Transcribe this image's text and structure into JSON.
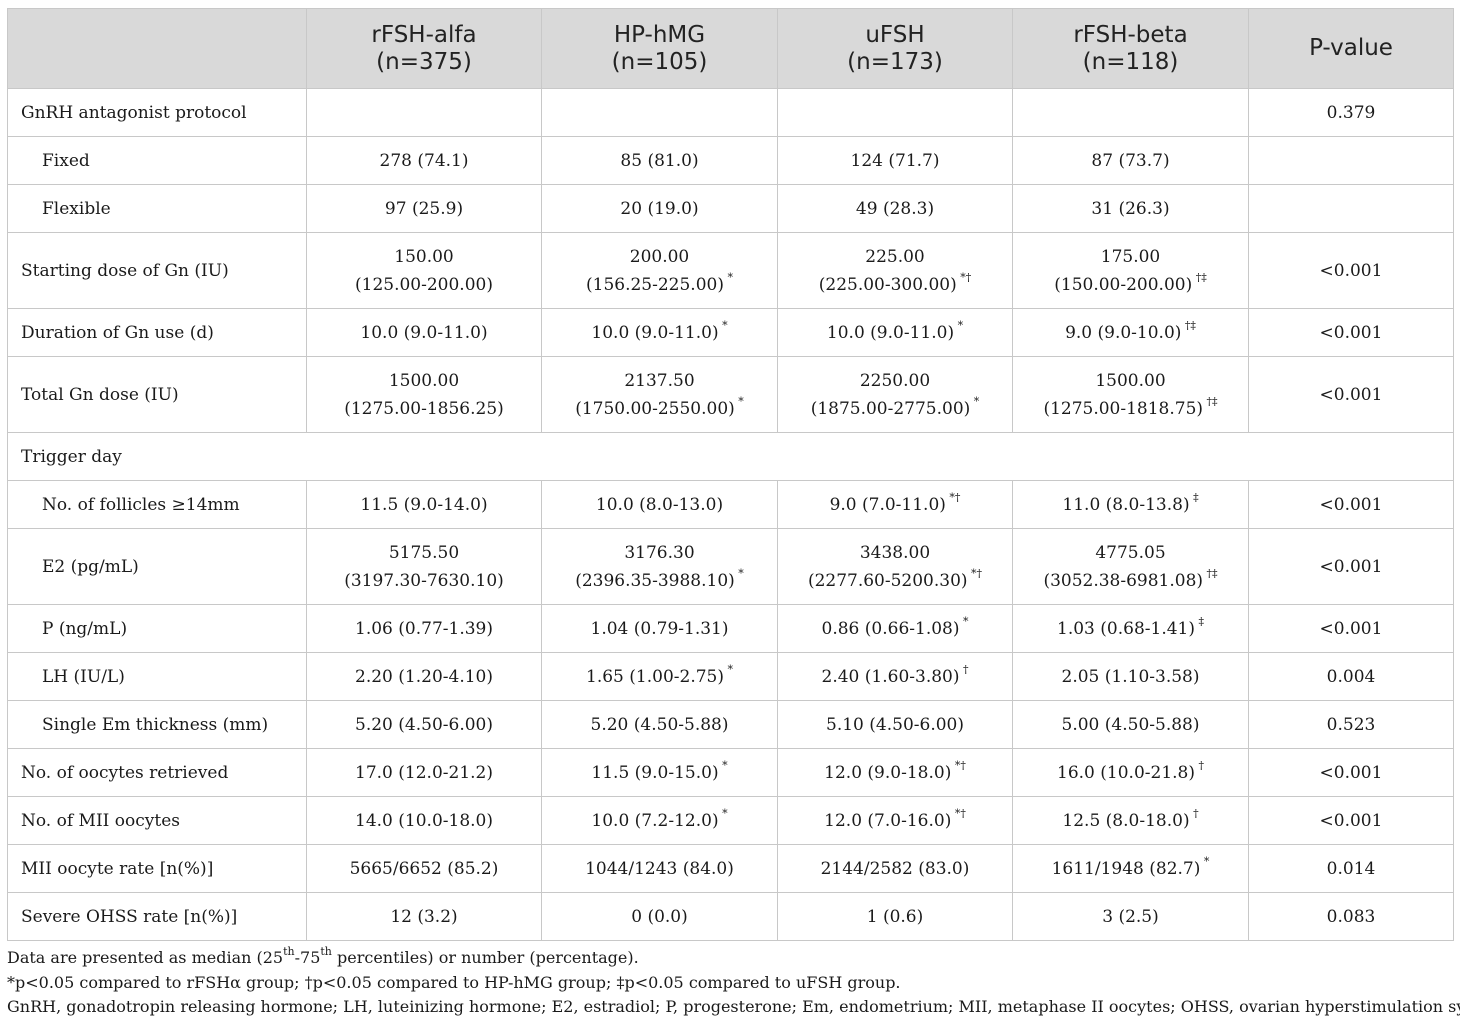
{
  "table": {
    "columns": [
      {
        "name": "",
        "n": ""
      },
      {
        "name": "rFSH-alfa",
        "n": "(n=375)"
      },
      {
        "name": "HP-hMG",
        "n": "(n=105)"
      },
      {
        "name": "uFSH",
        "n": "(n=173)"
      },
      {
        "name": "rFSH-beta",
        "n": "(n=118)"
      },
      {
        "name": "P-value",
        "n": ""
      }
    ],
    "rows": [
      {
        "label": "GnRH antagonist protocol",
        "indent": false,
        "tall": false,
        "span": false,
        "cells": [
          [],
          [],
          [],
          []
        ],
        "p": "0.379"
      },
      {
        "label": "Fixed",
        "indent": true,
        "tall": false,
        "span": false,
        "cells": [
          [
            {
              "t": "278 (74.1)",
              "s": ""
            }
          ],
          [
            {
              "t": "85 (81.0)",
              "s": ""
            }
          ],
          [
            {
              "t": "124 (71.7)",
              "s": ""
            }
          ],
          [
            {
              "t": "87 (73.7)",
              "s": ""
            }
          ]
        ],
        "p": ""
      },
      {
        "label": "Flexible",
        "indent": true,
        "tall": false,
        "span": false,
        "cells": [
          [
            {
              "t": "97 (25.9)",
              "s": ""
            }
          ],
          [
            {
              "t": "20 (19.0)",
              "s": ""
            }
          ],
          [
            {
              "t": "49 (28.3)",
              "s": ""
            }
          ],
          [
            {
              "t": "31 (26.3)",
              "s": ""
            }
          ]
        ],
        "p": ""
      },
      {
        "label": "Starting dose of Gn (IU)",
        "indent": false,
        "tall": true,
        "span": false,
        "cells": [
          [
            {
              "t": "150.00",
              "s": ""
            },
            {
              "t": "(125.00-200.00)",
              "s": ""
            }
          ],
          [
            {
              "t": "200.00",
              "s": ""
            },
            {
              "t": "(156.25-225.00)",
              "s": " *"
            }
          ],
          [
            {
              "t": "225.00",
              "s": ""
            },
            {
              "t": "(225.00-300.00)",
              "s": " *†"
            }
          ],
          [
            {
              "t": "175.00",
              "s": ""
            },
            {
              "t": "(150.00-200.00)",
              "s": " †‡"
            }
          ]
        ],
        "p": "<0.001"
      },
      {
        "label": "Duration of Gn use (d)",
        "indent": false,
        "tall": false,
        "span": false,
        "cells": [
          [
            {
              "t": "10.0 (9.0-11.0)",
              "s": ""
            }
          ],
          [
            {
              "t": "10.0 (9.0-11.0)",
              "s": " *"
            }
          ],
          [
            {
              "t": "10.0 (9.0-11.0)",
              "s": " *"
            }
          ],
          [
            {
              "t": "9.0 (9.0-10.0)",
              "s": " †‡"
            }
          ]
        ],
        "p": "<0.001"
      },
      {
        "label": "Total Gn dose (IU)",
        "indent": false,
        "tall": true,
        "span": false,
        "cells": [
          [
            {
              "t": "1500.00",
              "s": ""
            },
            {
              "t": "(1275.00-1856.25)",
              "s": ""
            }
          ],
          [
            {
              "t": "2137.50",
              "s": ""
            },
            {
              "t": "(1750.00-2550.00)",
              "s": " *"
            }
          ],
          [
            {
              "t": "2250.00",
              "s": ""
            },
            {
              "t": "(1875.00-2775.00)",
              "s": " *"
            }
          ],
          [
            {
              "t": "1500.00",
              "s": ""
            },
            {
              "t": "(1275.00-1818.75)",
              "s": " †‡"
            }
          ]
        ],
        "p": "<0.001"
      },
      {
        "label": "Trigger day",
        "indent": false,
        "tall": false,
        "span": true,
        "cells": [],
        "p": ""
      },
      {
        "label": "No. of follicles ≥14mm",
        "indent": true,
        "tall": false,
        "span": false,
        "cells": [
          [
            {
              "t": "11.5 (9.0-14.0)",
              "s": ""
            }
          ],
          [
            {
              "t": "10.0 (8.0-13.0)",
              "s": ""
            }
          ],
          [
            {
              "t": "9.0 (7.0-11.0)",
              "s": " *†"
            }
          ],
          [
            {
              "t": "11.0 (8.0-13.8)",
              "s": " ‡"
            }
          ]
        ],
        "p": "<0.001"
      },
      {
        "label": "E2 (pg/mL)",
        "indent": true,
        "tall": true,
        "span": false,
        "cells": [
          [
            {
              "t": "5175.50",
              "s": ""
            },
            {
              "t": "(3197.30-7630.10)",
              "s": ""
            }
          ],
          [
            {
              "t": "3176.30",
              "s": ""
            },
            {
              "t": "(2396.35-3988.10)",
              "s": " *"
            }
          ],
          [
            {
              "t": "3438.00",
              "s": ""
            },
            {
              "t": "(2277.60-5200.30)",
              "s": " *†"
            }
          ],
          [
            {
              "t": "4775.05",
              "s": ""
            },
            {
              "t": "(3052.38-6981.08)",
              "s": " †‡"
            }
          ]
        ],
        "p": "<0.001"
      },
      {
        "label": "P (ng/mL)",
        "indent": true,
        "tall": false,
        "span": false,
        "cells": [
          [
            {
              "t": "1.06 (0.77-1.39)",
              "s": ""
            }
          ],
          [
            {
              "t": "1.04 (0.79-1.31)",
              "s": ""
            }
          ],
          [
            {
              "t": "0.86 (0.66-1.08)",
              "s": " *"
            }
          ],
          [
            {
              "t": "1.03 (0.68-1.41)",
              "s": " ‡"
            }
          ]
        ],
        "p": "<0.001"
      },
      {
        "label": "LH (IU/L)",
        "indent": true,
        "tall": false,
        "span": false,
        "cells": [
          [
            {
              "t": "2.20 (1.20-4.10)",
              "s": ""
            }
          ],
          [
            {
              "t": "1.65 (1.00-2.75)",
              "s": " *"
            }
          ],
          [
            {
              "t": "2.40 (1.60-3.80)",
              "s": " †"
            }
          ],
          [
            {
              "t": "2.05 (1.10-3.58)",
              "s": ""
            }
          ]
        ],
        "p": "0.004"
      },
      {
        "label": "Single Em thickness (mm)",
        "indent": true,
        "tall": false,
        "span": false,
        "cells": [
          [
            {
              "t": "5.20 (4.50-6.00)",
              "s": ""
            }
          ],
          [
            {
              "t": "5.20 (4.50-5.88)",
              "s": ""
            }
          ],
          [
            {
              "t": "5.10 (4.50-6.00)",
              "s": ""
            }
          ],
          [
            {
              "t": "5.00 (4.50-5.88)",
              "s": ""
            }
          ]
        ],
        "p": "0.523"
      },
      {
        "label": "No. of oocytes retrieved",
        "indent": false,
        "tall": false,
        "span": false,
        "cells": [
          [
            {
              "t": "17.0 (12.0-21.2)",
              "s": ""
            }
          ],
          [
            {
              "t": "11.5 (9.0-15.0)",
              "s": " *"
            }
          ],
          [
            {
              "t": "12.0 (9.0-18.0)",
              "s": " *†"
            }
          ],
          [
            {
              "t": "16.0 (10.0-21.8)",
              "s": " †"
            }
          ]
        ],
        "p": "<0.001"
      },
      {
        "label": "No. of MII oocytes",
        "indent": false,
        "tall": false,
        "span": false,
        "cells": [
          [
            {
              "t": "14.0 (10.0-18.0)",
              "s": ""
            }
          ],
          [
            {
              "t": "10.0 (7.2-12.0)",
              "s": " *"
            }
          ],
          [
            {
              "t": "12.0 (7.0-16.0)",
              "s": " *†"
            }
          ],
          [
            {
              "t": "12.5 (8.0-18.0)",
              "s": " †"
            }
          ]
        ],
        "p": "<0.001"
      },
      {
        "label": "MII oocyte rate [n(%)]",
        "indent": false,
        "tall": false,
        "span": false,
        "cells": [
          [
            {
              "t": "5665/6652 (85.2)",
              "s": ""
            }
          ],
          [
            {
              "t": "1044/1243 (84.0)",
              "s": ""
            }
          ],
          [
            {
              "t": "2144/2582 (83.0)",
              "s": ""
            }
          ],
          [
            {
              "t": "1611/1948 (82.7)",
              "s": " *"
            }
          ]
        ],
        "p": "0.014"
      },
      {
        "label": "Severe OHSS rate [n(%)]",
        "indent": false,
        "tall": false,
        "span": false,
        "cells": [
          [
            {
              "t": "12 (3.2)",
              "s": ""
            }
          ],
          [
            {
              "t": "0 (0.0)",
              "s": ""
            }
          ],
          [
            {
              "t": "1 (0.6)",
              "s": ""
            }
          ],
          [
            {
              "t": "3 (2.5)",
              "s": ""
            }
          ]
        ],
        "p": "0.083"
      }
    ]
  },
  "notes": {
    "line1_a": "Data are presented as median (25",
    "line1_sup1": "th",
    "line1_b": "-75",
    "line1_sup2": "th",
    "line1_c": " percentiles) or number (percentage).",
    "line2": "*p<0.05 compared to rFSHα group; †p<0.05 compared to HP-hMG group; ‡p<0.05 compared to uFSH group.",
    "line3": "GnRH, gonadotropin releasing hormone; LH, luteinizing hormone; E2, estradiol; P, progesterone; Em, endometrium; MII, metaphase II oocytes; OHSS, ovarian hyperstimulation syndrome."
  }
}
